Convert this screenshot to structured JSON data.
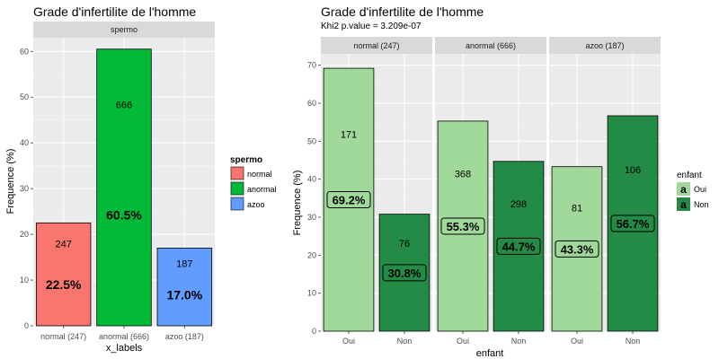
{
  "chart_data": [
    {
      "type": "bar",
      "title": "Grade d'infertilite de l'homme",
      "facet_label": "spermo",
      "xlabel": "x_labels",
      "ylabel": "Frequence (%)",
      "ylim": [
        0,
        63
      ],
      "yticks": [
        0,
        10,
        20,
        30,
        40,
        50,
        60
      ],
      "categories": [
        "normal (247)",
        "anormal (666)",
        "azoo (187)"
      ],
      "values": [
        22.5,
        60.5,
        17.0
      ],
      "counts": [
        "247",
        "666",
        "187"
      ],
      "pct_labels": [
        "22.5%",
        "60.5%",
        "17.0%"
      ],
      "colors": [
        "#f8766d",
        "#00ba38",
        "#619cff"
      ],
      "grid": true,
      "legend": {
        "title": "spermo",
        "position": "right",
        "items": [
          {
            "label": "normal",
            "color": "#f8766d"
          },
          {
            "label": "anormal",
            "color": "#00ba38"
          },
          {
            "label": "azoo",
            "color": "#619cff"
          }
        ]
      }
    },
    {
      "type": "bar",
      "title": "Grade d'infertilite de l'homme",
      "subtitle": "Khi2 p.value = 3.209e-07",
      "xlabel": "enfant",
      "ylabel": "Frequence (%)",
      "ylim": [
        0,
        73
      ],
      "yticks": [
        0,
        10,
        20,
        30,
        40,
        50,
        60,
        70
      ],
      "categories": [
        "Oui",
        "Non"
      ],
      "colors": {
        "Oui": "#a1d99b",
        "Non": "#238b45"
      },
      "grid": true,
      "facets": [
        {
          "label": "normal (247)",
          "values": [
            69.2,
            30.8
          ],
          "counts": [
            "171",
            "76"
          ],
          "pct_labels": [
            "69.2%",
            "30.8%"
          ]
        },
        {
          "label": "anormal (666)",
          "values": [
            55.3,
            44.7
          ],
          "counts": [
            "368",
            "298"
          ],
          "pct_labels": [
            "55.3%",
            "44.7%"
          ]
        },
        {
          "label": "azoo (187)",
          "values": [
            43.3,
            56.7
          ],
          "counts": [
            "81",
            "106"
          ],
          "pct_labels": [
            "43.3%",
            "56.7%"
          ]
        }
      ],
      "legend": {
        "title": "enfant",
        "position": "right",
        "key_glyph": "a",
        "items": [
          {
            "label": "Oui",
            "color": "#a1d99b"
          },
          {
            "label": "Non",
            "color": "#238b45"
          }
        ]
      }
    }
  ]
}
